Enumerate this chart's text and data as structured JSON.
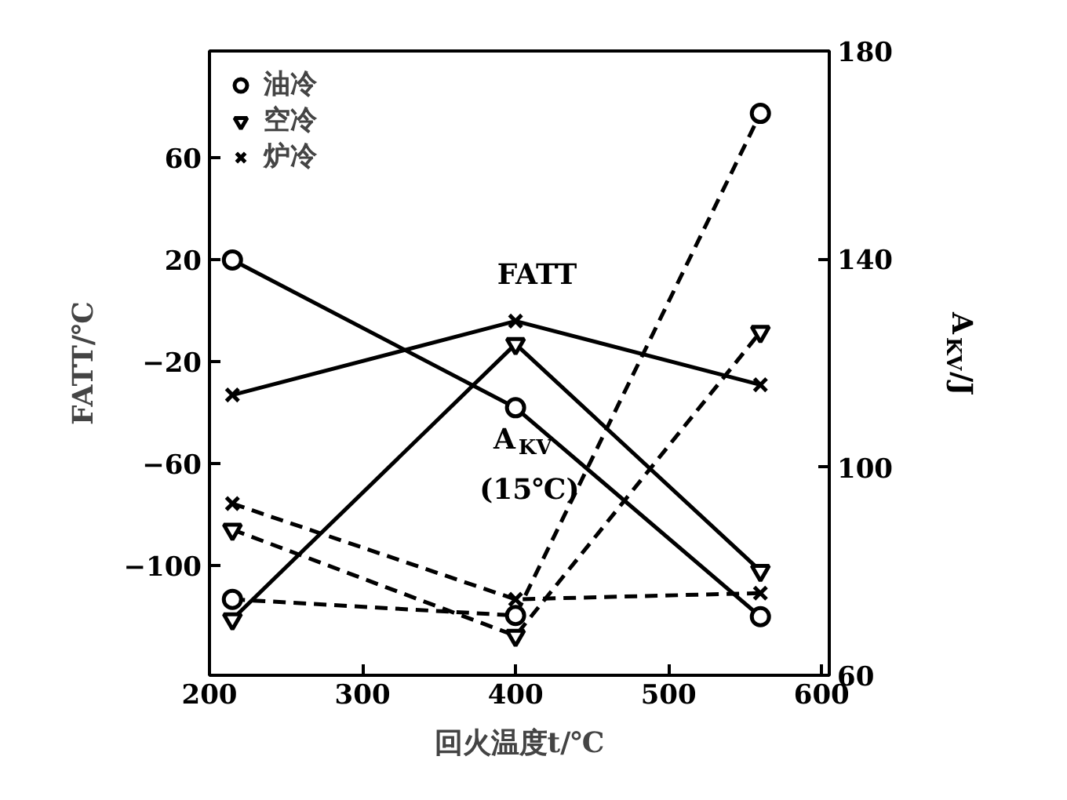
{
  "chart_data": {
    "type": "line",
    "x": [
      215,
      400,
      560
    ],
    "xlabel": "回火温度t/℃",
    "ylabel": "FATT/℃",
    "y2label": "A$_{KV}$/J",
    "xlim": [
      200,
      605
    ],
    "xticks": [
      200,
      300,
      400,
      500,
      600
    ],
    "ylim": [
      -143,
      102
    ],
    "yticks": [
      -100,
      -60,
      -20,
      20,
      60
    ],
    "y2lim": [
      60,
      180
    ],
    "y2ticks": [
      60,
      100,
      140,
      180
    ],
    "legend": "top left",
    "grid": false,
    "annotations": [
      "FATT",
      "A$_{KV}$",
      "(15℃)"
    ],
    "series": [
      {
        "name": "油冷",
        "color": "#000000",
        "marker": "circle",
        "line_style": "solid",
        "values": [
          20,
          -38,
          -120
        ]
      },
      {
        "name": "空冷",
        "color": "#000000",
        "marker": "triangle",
        "line_style": "solid",
        "values": [
          -121,
          -13,
          -102
        ]
      },
      {
        "name": "炉冷",
        "color": "#000000",
        "marker": "cross",
        "line_style": "solid",
        "values": [
          -33,
          -4,
          -29
        ]
      },
      {
        "color": "#000000",
        "marker": "circle",
        "line_style": "dashed",
        "axis": "y2",
        "values": [
          74.6,
          71.5,
          168
        ]
      },
      {
        "color": "#000000",
        "marker": "triangle",
        "line_style": "dashed",
        "axis": "y2",
        "values": [
          88,
          67.6,
          126
        ]
      },
      {
        "color": "#000000",
        "marker": "cross",
        "line_style": "dashed",
        "axis": "y2",
        "values": [
          93,
          74.6,
          75.8
        ]
      }
    ]
  }
}
